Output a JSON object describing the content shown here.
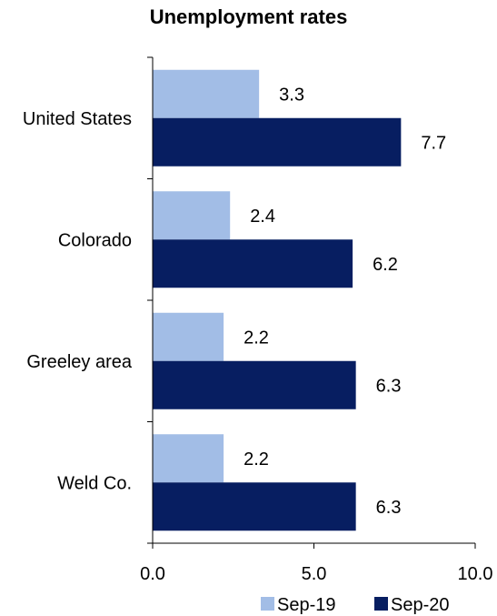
{
  "chart_data": {
    "type": "bar",
    "orientation": "horizontal",
    "title": "Unemployment rates",
    "xlabel": "",
    "ylabel": "",
    "categories": [
      "United States",
      "Colorado",
      "Greeley area",
      "Weld Co."
    ],
    "series": [
      {
        "name": "Sep-19",
        "color": "#a2bde6",
        "values": [
          3.3,
          2.4,
          2.2,
          2.2
        ]
      },
      {
        "name": "Sep-20",
        "color": "#071e61",
        "values": [
          7.7,
          6.2,
          6.3,
          6.3
        ]
      }
    ],
    "xlim": [
      0,
      10
    ],
    "xticks": [
      "0.0",
      "5.0",
      "10.0"
    ],
    "grid": false,
    "legend": "bottom-right"
  }
}
